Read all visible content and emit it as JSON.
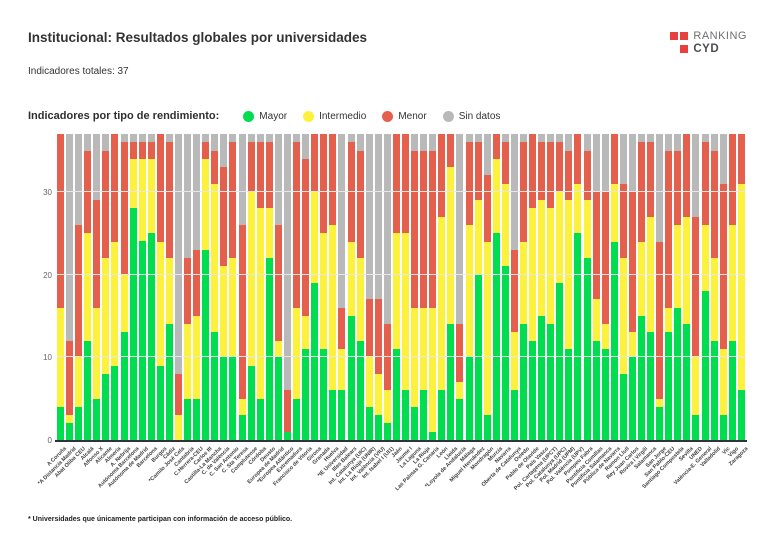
{
  "header": {
    "title": "Institucional: Resultados globales por universidades",
    "subtitle": "Indicadores totales: 37"
  },
  "logo": {
    "line1": "RANKING",
    "line2": "CYD",
    "red": "#e8403f"
  },
  "legend": {
    "heading": "Indicadores por tipo de rendimiento:",
    "items": [
      {
        "label": "Mayor",
        "color": "#00dd4e"
      },
      {
        "label": "Intermedio",
        "color": "#fcf23d"
      },
      {
        "label": "Menor",
        "color": "#e4604d"
      },
      {
        "label": "Sin datos",
        "color": "#b9b9b9"
      }
    ]
  },
  "footnote": "* Universidades que únicamente participan con información de acceso público.",
  "chart_data": {
    "type": "bar",
    "stacked": true,
    "title": "Institucional: Resultados globales por universidades",
    "total_per_bar": 37,
    "ylim": [
      0,
      37
    ],
    "yticks": [
      0,
      10,
      20,
      30
    ],
    "grid": true,
    "legend_position": "top",
    "categories": [
      "A Coruña",
      "*A Distancia Madrid",
      "Abat Oliba CEU",
      "Alcalá",
      "Alfonso X",
      "Alicante",
      "Almería",
      "A. Nebrija",
      "Autónoma Barcelona",
      "Autónoma de Madrid",
      "Barcelona",
      "Burgos",
      "Cádiz",
      "*Camilo José Cela",
      "Cantabria",
      "C.Herrera-CEU",
      "Carlos III",
      "Castilla-La Mancha",
      "C. de València",
      "C. San Antonio",
      "C. Sta Teresa",
      "Complutense",
      "Córdoba",
      "Deusto",
      "Europea de Madrid",
      "*Europea Atlántico",
      "Extremadura",
      "Francisco de Vitoria",
      "Girona",
      "Granada",
      "Huelva",
      "*IE Universidad",
      "Illes Balears",
      "Int. Catalunya (UIC)",
      "Int. La Rioja (UNIR)",
      "Int. València (VIU)",
      "Int. Isabel I (UI1)",
      "Jaén",
      "Jaume I",
      "La Laguna",
      "La Rioja",
      "Las Palmas G. Canaria",
      "León",
      "Lleida",
      "*Loyola de Andalucía",
      "Málaga",
      "Miguel Hernández",
      "Mondragón",
      "Murcia",
      "Navarra",
      "Oberta de Catalunya",
      "Oviedo",
      "Pablo de Olavide",
      "País Vasco",
      "Pol. Cartagena (UPCT)",
      "Pol. Catalunya (UPC)",
      "Pol. Madrid (UPM)",
      "Pol. València (UPV)",
      "Pompeu Fabra",
      "Pontificia Comillas",
      "Pontificia Salamanca",
      "Pública de Navarra",
      "Ramon Llull",
      "Rey Juan Carlos",
      "Rovira i Virgili",
      "Salamanca",
      "San Jorge",
      "San Pablo-CEU",
      "Santiago Compostela",
      "Sevilla",
      "UNED",
      "València-E. General",
      "Valladolid",
      "Vic",
      "Vigo",
      "Zaragoza"
    ],
    "series": [
      {
        "name": "Mayor",
        "color": "#00dd4e",
        "values": [
          4,
          2,
          4,
          12,
          5,
          8,
          9,
          13,
          28,
          24,
          25,
          9,
          14,
          0,
          5,
          5,
          23,
          13,
          10,
          10,
          3,
          9,
          5,
          22,
          10,
          1,
          5,
          11,
          19,
          11,
          6,
          6,
          15,
          12,
          4,
          3,
          2,
          11,
          6,
          4,
          6,
          1,
          6,
          14,
          5,
          10,
          20,
          3,
          25,
          21,
          6,
          14,
          12,
          15,
          14,
          19,
          11,
          25,
          22,
          12,
          11,
          24,
          8,
          10,
          15,
          13,
          4,
          13,
          16,
          14,
          3,
          18,
          12,
          3,
          12,
          6
        ]
      },
      {
        "name": "Intermedio",
        "color": "#fcf23d",
        "values": [
          12,
          1,
          6,
          13,
          11,
          14,
          15,
          7,
          6,
          10,
          9,
          15,
          8,
          3,
          9,
          10,
          11,
          18,
          11,
          12,
          2,
          21,
          23,
          6,
          2,
          0,
          11,
          4,
          11,
          14,
          20,
          5,
          9,
          10,
          6,
          5,
          4,
          14,
          19,
          12,
          10,
          15,
          21,
          19,
          2,
          16,
          9,
          21,
          9,
          10,
          7,
          10,
          16,
          14,
          14,
          11,
          18,
          6,
          7,
          5,
          3,
          7,
          14,
          3,
          9,
          14,
          1,
          3,
          10,
          13,
          7,
          8,
          10,
          8,
          14,
          25
        ]
      },
      {
        "name": "Menor",
        "color": "#e4604d",
        "values": [
          21,
          9,
          16,
          10,
          13,
          13,
          13,
          16,
          2,
          2,
          2,
          13,
          14,
          5,
          8,
          8,
          2,
          4,
          12,
          14,
          21,
          6,
          8,
          8,
          14,
          5,
          20,
          19,
          7,
          12,
          11,
          5,
          12,
          13,
          7,
          9,
          8,
          12,
          12,
          19,
          19,
          19,
          10,
          4,
          7,
          10,
          7,
          8,
          3,
          5,
          10,
          12,
          9,
          7,
          8,
          6,
          6,
          6,
          6,
          13,
          16,
          6,
          9,
          17,
          12,
          9,
          19,
          19,
          9,
          10,
          17,
          10,
          13,
          20,
          11,
          6
        ]
      },
      {
        "name": "Sin datos",
        "color": "#b9b9b9",
        "values": [
          0,
          25,
          11,
          2,
          8,
          2,
          0,
          1,
          1,
          1,
          1,
          0,
          1,
          29,
          15,
          14,
          1,
          2,
          4,
          1,
          11,
          1,
          1,
          1,
          11,
          31,
          1,
          3,
          0,
          0,
          0,
          21,
          1,
          2,
          20,
          20,
          23,
          0,
          0,
          2,
          2,
          2,
          0,
          0,
          23,
          1,
          1,
          5,
          0,
          1,
          14,
          1,
          0,
          1,
          1,
          1,
          2,
          0,
          2,
          7,
          7,
          0,
          6,
          7,
          1,
          1,
          13,
          2,
          2,
          0,
          10,
          1,
          2,
          6,
          0,
          0
        ]
      }
    ]
  }
}
